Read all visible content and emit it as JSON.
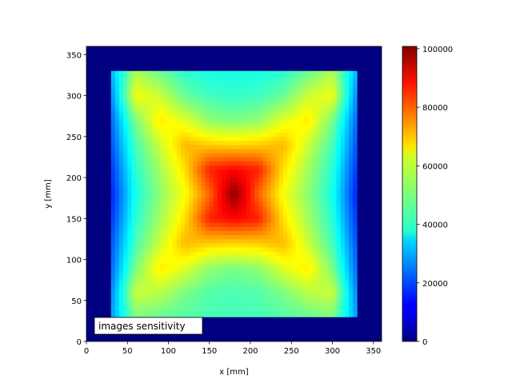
{
  "chart_data": {
    "type": "heatmap",
    "title": "",
    "xlabel": "x [mm]",
    "ylabel": "y [mm]",
    "xlim": [
      0,
      360
    ],
    "ylim": [
      0,
      360
    ],
    "xticks": [
      0,
      50,
      100,
      150,
      200,
      250,
      300,
      350
    ],
    "yticks": [
      0,
      50,
      100,
      150,
      200,
      250,
      300,
      350
    ],
    "colormap": "jet",
    "colorbar": {
      "vmin": 0,
      "vmax": 100800,
      "ticks": [
        0,
        20000,
        40000,
        60000,
        80000,
        100000
      ],
      "tick_labels": [
        "0",
        "20000",
        "40000",
        "60000",
        "80000",
        "100000"
      ]
    },
    "background_value": 0,
    "grid": false,
    "annotation": "images sensitivity",
    "grid_x": [
      30,
      60,
      90,
      120,
      150,
      180,
      210,
      240,
      270,
      300,
      330
    ],
    "grid_y": [
      30,
      60,
      90,
      120,
      150,
      180,
      210,
      240,
      270,
      300,
      330
    ],
    "values": [
      [
        30000,
        55000,
        48000,
        42000,
        40000,
        40000,
        40000,
        42000,
        48000,
        55000,
        30000
      ],
      [
        25000,
        62000,
        58000,
        48000,
        44000,
        43000,
        44000,
        48000,
        58000,
        62000,
        25000
      ],
      [
        22000,
        50000,
        65000,
        60000,
        52000,
        50000,
        52000,
        60000,
        65000,
        50000,
        22000
      ],
      [
        20000,
        45000,
        58000,
        70000,
        68000,
        67000,
        68000,
        70000,
        58000,
        45000,
        20000
      ],
      [
        17000,
        42000,
        54000,
        66000,
        85000,
        88000,
        85000,
        66000,
        54000,
        42000,
        17000
      ],
      [
        15000,
        40000,
        52000,
        62000,
        78000,
        100000,
        78000,
        62000,
        52000,
        40000,
        15000
      ],
      [
        17000,
        42000,
        54000,
        66000,
        85000,
        88000,
        85000,
        66000,
        54000,
        42000,
        17000
      ],
      [
        20000,
        45000,
        58000,
        70000,
        68000,
        67000,
        68000,
        70000,
        58000,
        45000,
        20000
      ],
      [
        22000,
        50000,
        65000,
        60000,
        52000,
        50000,
        52000,
        60000,
        65000,
        50000,
        22000
      ],
      [
        25000,
        58000,
        56000,
        50000,
        46000,
        45000,
        46000,
        50000,
        56000,
        58000,
        25000
      ],
      [
        28000,
        50000,
        48000,
        46000,
        45000,
        45000,
        45000,
        46000,
        48000,
        50000,
        28000
      ]
    ]
  }
}
